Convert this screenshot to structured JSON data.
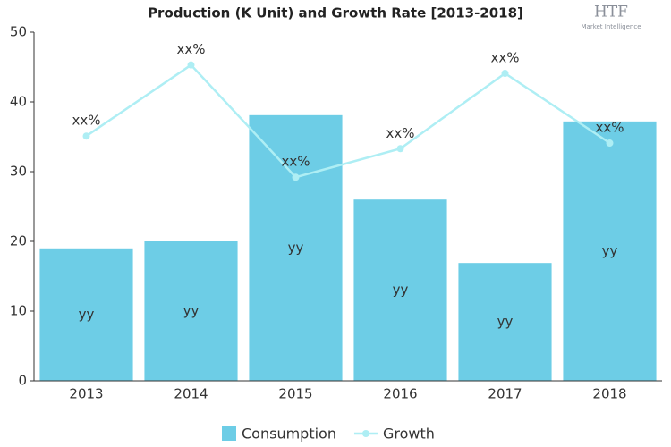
{
  "chart_data": {
    "type": "bar-line",
    "title": "Production (K Unit) and Growth Rate [2013-2018]",
    "categories": [
      "2013",
      "2014",
      "2015",
      "2016",
      "2017",
      "2018"
    ],
    "series": [
      {
        "name": "Consumption",
        "type": "bar",
        "color": "#6dcde6",
        "values": [
          19,
          20,
          38.1,
          26,
          16.9,
          37.2
        ],
        "value_labels": [
          "yy",
          "yy",
          "yy",
          "yy",
          "yy",
          "yy"
        ]
      },
      {
        "name": "Growth",
        "type": "line",
        "color": "#aeeef4",
        "values": [
          35.1,
          45.3,
          29.2,
          33.3,
          44.1,
          34.1
        ],
        "value_labels": [
          "xx%",
          "xx%",
          "xx%",
          "xx%",
          "xx%",
          "xx%"
        ]
      }
    ],
    "ylim": [
      0,
      50
    ],
    "yticks": [
      0,
      10,
      20,
      30,
      40,
      50
    ],
    "grid": false,
    "legend": "bottom"
  },
  "logo": {
    "text": "HTF",
    "subtitle": "Market Intelligence"
  }
}
